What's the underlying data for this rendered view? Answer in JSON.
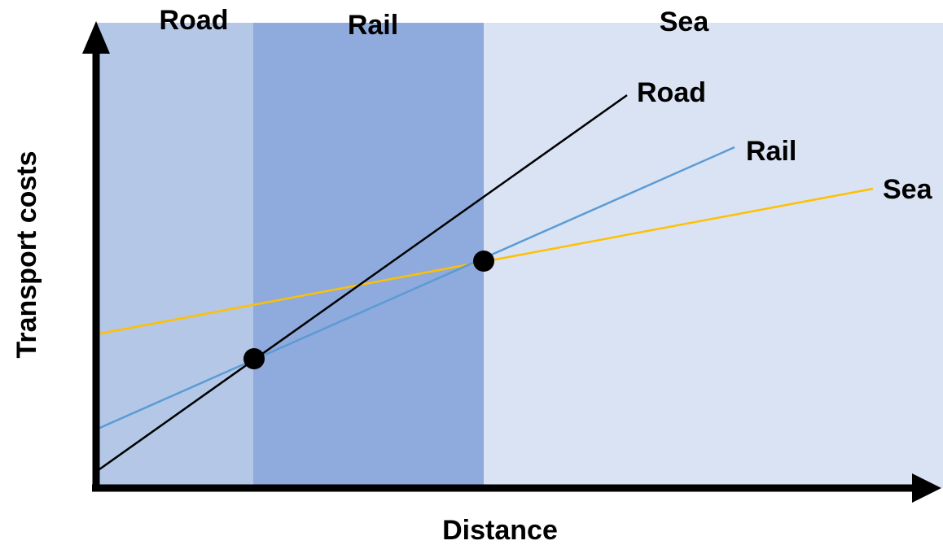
{
  "diagram": {
    "regions": [
      {
        "label": "Road",
        "color": "#b4c7e7"
      },
      {
        "label": "Rail",
        "color": "#8faadc"
      },
      {
        "label": "Sea",
        "color": "#dae3f3"
      }
    ],
    "lines": [
      {
        "label": "Road",
        "color": "#000000"
      },
      {
        "label": "Rail",
        "color": "#5b9bd5"
      },
      {
        "label": "Sea",
        "color": "#ffc000"
      }
    ],
    "axes": {
      "x_label": "Distance",
      "y_label": "Transport costs"
    },
    "break_points": 2
  }
}
